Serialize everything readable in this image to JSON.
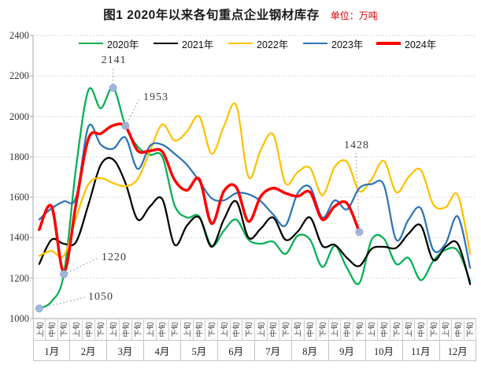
{
  "title": "图1  2020年以来各旬重点企业钢材库存",
  "unit_label": "单位：万吨",
  "chart_data": {
    "type": "line",
    "title": "图1  2020年以来各旬重点企业钢材库存",
    "unit": "万吨",
    "ylim": [
      1000,
      2400
    ],
    "y_ticks": [
      1000,
      1200,
      1400,
      1600,
      1800,
      2000,
      2200,
      2400
    ],
    "grid": "dotted-horizontal",
    "legend_position": "top-inside",
    "x_months": [
      "1月",
      "2月",
      "3月",
      "4月",
      "5月",
      "6月",
      "7月",
      "8月",
      "9月",
      "10月",
      "11月",
      "12月"
    ],
    "periods_per_month": [
      "上旬",
      "中旬",
      "下旬"
    ],
    "categories": [
      "1月上旬",
      "1月中旬",
      "1月下旬",
      "2月上旬",
      "2月中旬",
      "2月下旬",
      "3月上旬",
      "3月中旬",
      "3月下旬",
      "4月上旬",
      "4月中旬",
      "4月下旬",
      "5月上旬",
      "5月中旬",
      "5月下旬",
      "6月上旬",
      "6月中旬",
      "6月下旬",
      "7月上旬",
      "7月中旬",
      "7月下旬",
      "8月上旬",
      "8月中旬",
      "8月下旬",
      "9月上旬",
      "9月中旬",
      "9月下旬",
      "10月上旬",
      "10月中旬",
      "10月下旬",
      "11月上旬",
      "11月中旬",
      "11月下旬",
      "12月上旬",
      "12月中旬",
      "12月下旬"
    ],
    "series": [
      {
        "name": "2020年",
        "color": "#00B050",
        "width": 2.25,
        "values": [
          1050,
          1085,
          1220,
          1750,
          2130,
          2040,
          2141,
          1953,
          1850,
          1810,
          1800,
          1560,
          1500,
          1505,
          1360,
          1435,
          1490,
          1390,
          1370,
          1380,
          1320,
          1410,
          1390,
          1255,
          1360,
          1250,
          1175,
          1390,
          1395,
          1270,
          1300,
          1190,
          1285,
          1340,
          1335,
          1185
        ]
      },
      {
        "name": "2021年",
        "color": "#000000",
        "width": 2.25,
        "values": [
          1270,
          1390,
          1370,
          1380,
          1565,
          1760,
          1787,
          1671,
          1490,
          1555,
          1590,
          1365,
          1460,
          1500,
          1355,
          1490,
          1580,
          1400,
          1445,
          1500,
          1390,
          1430,
          1500,
          1360,
          1365,
          1300,
          1260,
          1345,
          1355,
          1350,
          1420,
          1460,
          1290,
          1355,
          1370,
          1170
        ]
      },
      {
        "name": "2022年",
        "color": "#FFC000",
        "width": 2.25,
        "values": [
          1310,
          1335,
          1310,
          1500,
          1665,
          1695,
          1670,
          1655,
          1690,
          1830,
          1960,
          1880,
          1925,
          2000,
          1815,
          1950,
          2055,
          1700,
          1835,
          1910,
          1670,
          1725,
          1745,
          1610,
          1750,
          1775,
          1630,
          1690,
          1780,
          1625,
          1700,
          1735,
          1565,
          1550,
          1610,
          1320
        ]
      },
      {
        "name": "2023年",
        "color": "#2E75B6",
        "width": 2.25,
        "values": [
          1490,
          1545,
          1580,
          1600,
          1950,
          1860,
          1840,
          1895,
          1740,
          1855,
          1860,
          1815,
          1760,
          1680,
          1595,
          1585,
          1620,
          1615,
          1580,
          1515,
          1460,
          1620,
          1650,
          1500,
          1585,
          1540,
          1645,
          1665,
          1660,
          1390,
          1490,
          1545,
          1340,
          1370,
          1505,
          1250
        ]
      },
      {
        "name": "2024年",
        "color": "#FF0000",
        "width": 3.5,
        "values": [
          1440,
          1555,
          1230,
          1570,
          1890,
          1915,
          1955,
          1950,
          1830,
          1830,
          1825,
          1685,
          1635,
          1690,
          1470,
          1630,
          1650,
          1480,
          1605,
          1645,
          1620,
          1605,
          1625,
          1490,
          1555,
          1570,
          1428
        ]
      }
    ],
    "annotations": [
      {
        "label": "1050",
        "series": "2020年",
        "category": "1月上旬",
        "value": 1050
      },
      {
        "label": "1220",
        "series": "2020年",
        "category": "1月下旬",
        "value": 1220
      },
      {
        "label": "2141",
        "series": "2020年",
        "category": "3月上旬",
        "value": 2141
      },
      {
        "label": "1953",
        "series": "2020年",
        "category": "3月中旬",
        "value": 1953
      },
      {
        "label": "1428",
        "series": "2024年",
        "category": "9月下旬",
        "value": 1428
      }
    ],
    "marker_color": "#9FB5DC"
  }
}
